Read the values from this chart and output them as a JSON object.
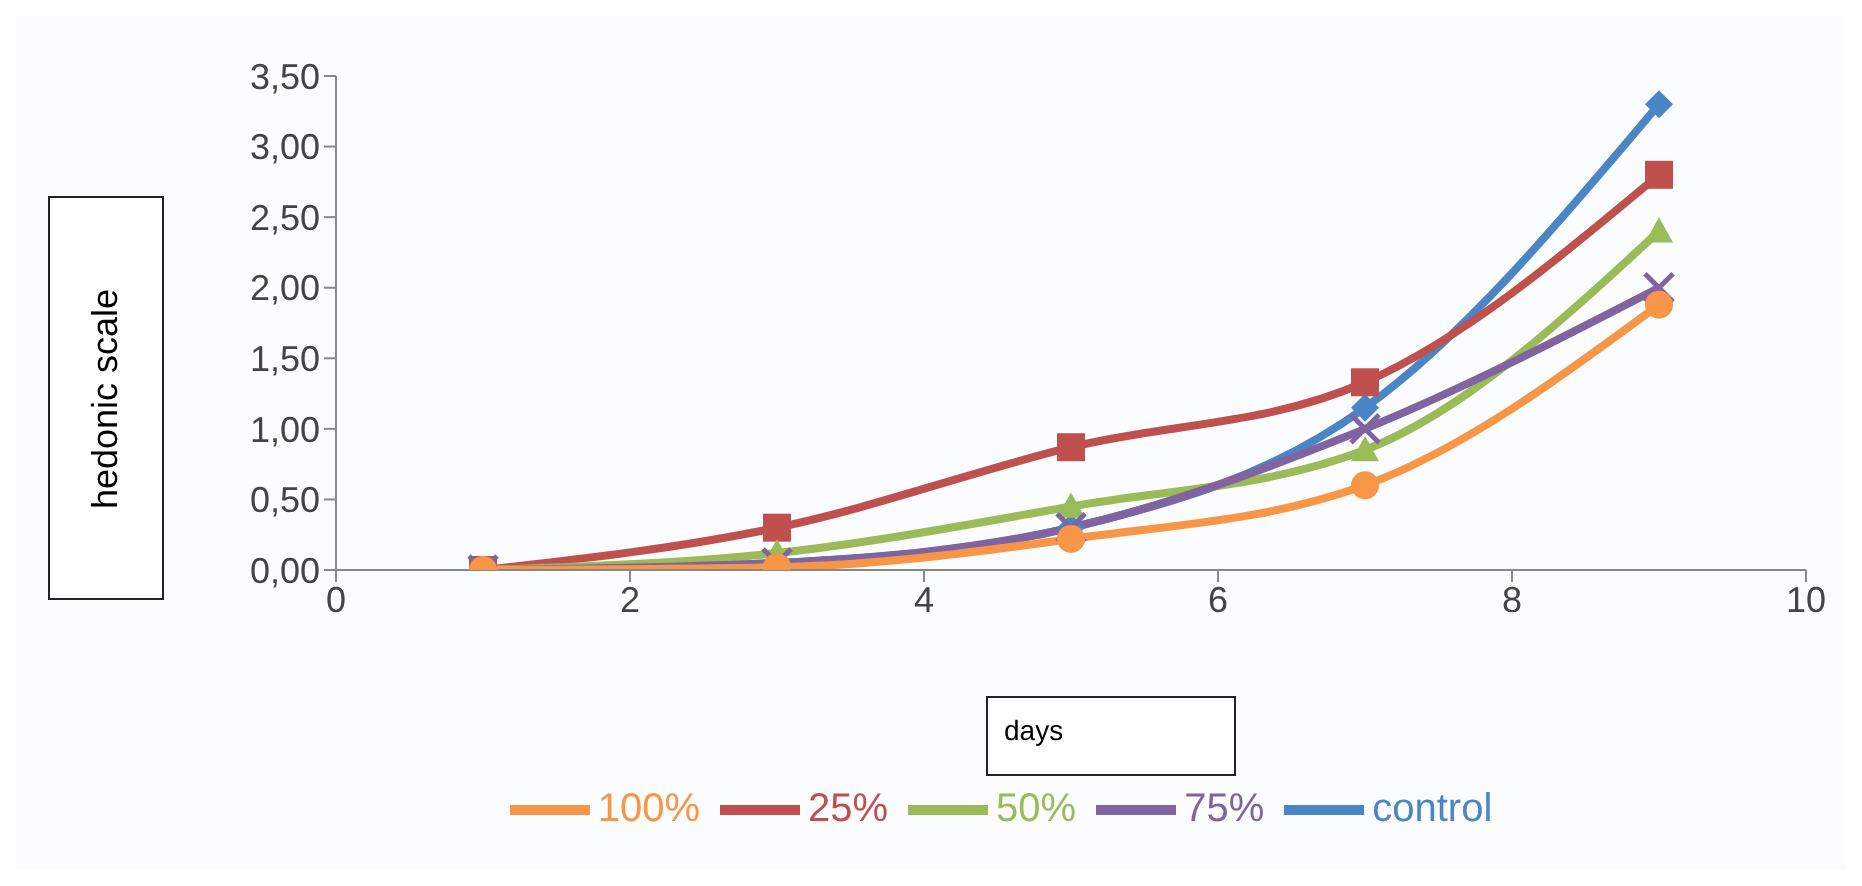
{
  "chart_data": {
    "type": "line",
    "xlabel": "days",
    "ylabel": "hedonic scale",
    "x": [
      1,
      3,
      5,
      7,
      9
    ],
    "series": [
      {
        "name": "control",
        "color": "#4a86c5",
        "marker": "diamond",
        "values": [
          0,
          0.05,
          0.3,
          1.15,
          3.3
        ]
      },
      {
        "name": "25%",
        "color": "#c0504d",
        "marker": "square",
        "values": [
          0,
          0.3,
          0.87,
          1.33,
          2.8
        ]
      },
      {
        "name": "50%",
        "color": "#9bbb59",
        "marker": "triangle",
        "values": [
          0,
          0.12,
          0.45,
          0.85,
          2.4
        ]
      },
      {
        "name": "75%",
        "color": "#8064a2",
        "marker": "cross",
        "values": [
          0,
          0.05,
          0.3,
          1.0,
          2.0
        ]
      },
      {
        "name": "100%",
        "color": "#f79646",
        "marker": "circle",
        "values": [
          0,
          0.02,
          0.22,
          0.6,
          1.88
        ]
      }
    ],
    "xlim": [
      0,
      10
    ],
    "xticks": [
      0,
      2,
      4,
      6,
      8,
      10
    ],
    "ylim": [
      0,
      3.5
    ],
    "yticks": [
      {
        "value": 0,
        "label": "0,00"
      },
      {
        "value": 0.5,
        "label": "0,50"
      },
      {
        "value": 1,
        "label": "1,00"
      },
      {
        "value": 1.5,
        "label": "1,50"
      },
      {
        "value": 2,
        "label": "2,00"
      },
      {
        "value": 2.5,
        "label": "2,50"
      },
      {
        "value": 3,
        "label": "3,00"
      },
      {
        "value": 3.5,
        "label": "3,50"
      }
    ],
    "grid": false,
    "legend": "bottom",
    "line_style": "solid"
  }
}
